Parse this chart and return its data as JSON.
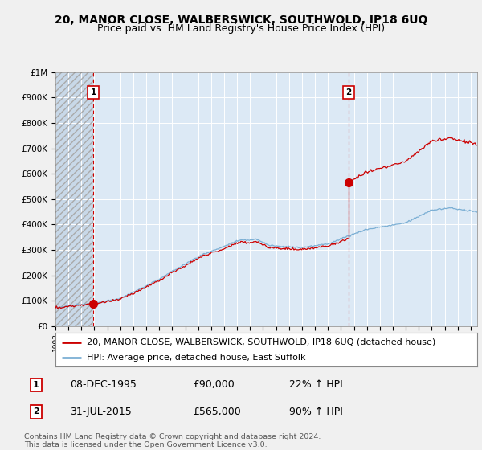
{
  "title": "20, MANOR CLOSE, WALBERSWICK, SOUTHWOLD, IP18 6UQ",
  "subtitle": "Price paid vs. HM Land Registry's House Price Index (HPI)",
  "legend_line1": "20, MANOR CLOSE, WALBERSWICK, SOUTHWOLD, IP18 6UQ (detached house)",
  "legend_line2": "HPI: Average price, detached house, East Suffolk",
  "annotation1_date": "08-DEC-1995",
  "annotation1_price": "£90,000",
  "annotation1_hpi": "22% ↑ HPI",
  "annotation2_date": "31-JUL-2015",
  "annotation2_price": "£565,000",
  "annotation2_hpi": "90% ↑ HPI",
  "footer": "Contains HM Land Registry data © Crown copyright and database right 2024.\nThis data is licensed under the Open Government Licence v3.0.",
  "price_line_color": "#cc0000",
  "hpi_line_color": "#7bafd4",
  "background_color": "#f0f0f0",
  "plot_bg_color": "#dce9f5",
  "hatch_bg_color": "#c8c8c8",
  "grid_color": "#ffffff",
  "ylim": [
    0,
    1000000
  ],
  "xlim_start": 1993.0,
  "xlim_end": 2025.5,
  "sale1_x": 1995.92,
  "sale1_y": 90000,
  "sale2_x": 2015.58,
  "sale2_y": 565000,
  "hatch_end_x": 1995.92,
  "title_fontsize": 10,
  "subtitle_fontsize": 9,
  "axis_fontsize": 7,
  "legend_fontsize": 8,
  "table_fontsize": 9
}
